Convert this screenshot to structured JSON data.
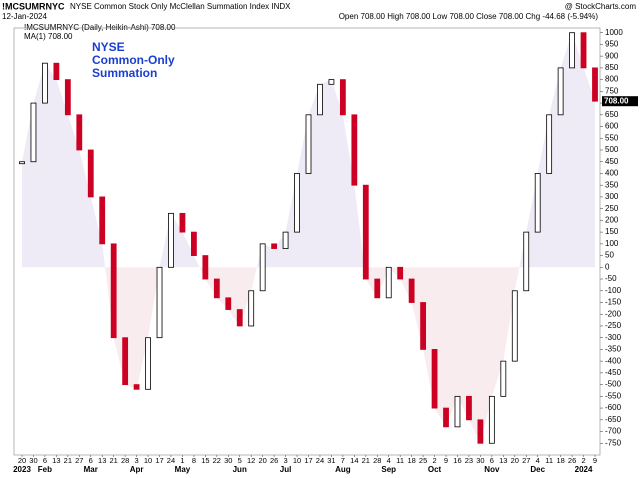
{
  "chart_data": {
    "type": "candlestick",
    "symbol": "!MCSUMRNYC",
    "title": "NYSE Common Stock Only McClellan Summation Index INDX",
    "watermark": "@ StockCharts.com",
    "date": "12-Jan-2024",
    "quote": "Open 708.00 High 708.00 Low 708.00 Close 708.00 Chg -44.68 (-5.94%)",
    "legend": [
      "!MCSUMRNYC (Daily, Heikin-Ashi) 708.00",
      "MA(1) 708.00"
    ],
    "annotation": [
      "NYSE",
      "Common-Only",
      "Summation"
    ],
    "last_label": "708.00",
    "categories": [
      "20",
      "30",
      "6",
      "13",
      "21",
      "27",
      "6",
      "13",
      "21",
      "28",
      "3",
      "10",
      "17",
      "24",
      "1",
      "8",
      "15",
      "22",
      "30",
      "5",
      "12",
      "20",
      "26",
      "3",
      "10",
      "17",
      "24",
      "31",
      "7",
      "14",
      "21",
      "28",
      "4",
      "11",
      "18",
      "25",
      "2",
      "9",
      "16",
      "23",
      "30",
      "6",
      "13",
      "20",
      "27",
      "4",
      "11",
      "18",
      "26",
      "2",
      "9"
    ],
    "months": [
      "2023",
      null,
      "Feb",
      null,
      null,
      null,
      "Mar",
      null,
      null,
      null,
      "Apr",
      null,
      null,
      null,
      "May",
      null,
      null,
      null,
      null,
      "Jun",
      null,
      null,
      null,
      "Jul",
      null,
      null,
      null,
      null,
      "Aug",
      null,
      null,
      null,
      "Sep",
      null,
      null,
      null,
      "Oct",
      null,
      null,
      null,
      null,
      "Nov",
      null,
      null,
      null,
      "Dec",
      null,
      null,
      null,
      "2024",
      null
    ],
    "values": [
      450,
      700,
      870,
      800,
      650,
      500,
      300,
      100,
      -300,
      -500,
      -520,
      -300,
      0,
      230,
      150,
      50,
      -50,
      -130,
      -180,
      -250,
      -100,
      100,
      80,
      150,
      400,
      650,
      780,
      800,
      650,
      350,
      -50,
      -130,
      0,
      -50,
      -150,
      -350,
      -600,
      -680,
      -550,
      -650,
      -750,
      -550,
      -400,
      -100,
      150,
      400,
      650,
      850,
      1000,
      850,
      708
    ],
    "up_color": "#000000",
    "down_color": "#cc0022",
    "above_fill": "#eeeaf6",
    "below_fill": "#f8ecee",
    "ylim": [
      -800,
      1020
    ],
    "yticks": [
      -750,
      -700,
      -650,
      -600,
      -550,
      -500,
      -450,
      -400,
      -350,
      -300,
      -250,
      -200,
      -150,
      -100,
      -50,
      0,
      50,
      100,
      150,
      200,
      250,
      300,
      350,
      400,
      450,
      500,
      550,
      600,
      650,
      700,
      750,
      800,
      850,
      900,
      950,
      1000
    ]
  }
}
